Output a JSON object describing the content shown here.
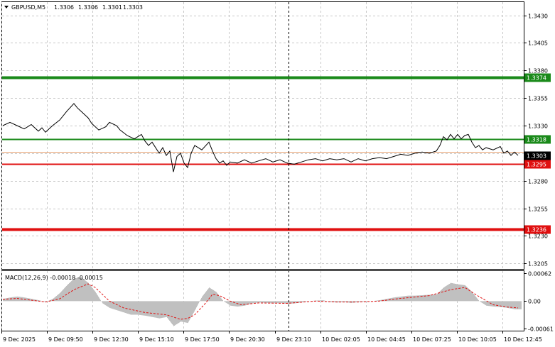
{
  "symbol_line": {
    "title": "GBPUSD,M5",
    "open": "1.3306",
    "high": "1.3306",
    "low": "1.3301",
    "close": "1.3303"
  },
  "price_axis": {
    "ticks": [
      "1.3430",
      "1.3405",
      "1.3380",
      "1.3355",
      "1.3330",
      "1.3305",
      "1.3280",
      "1.3255",
      "1.3230",
      "1.3205"
    ],
    "min": 1.32,
    "max": 1.3442
  },
  "levels": [
    {
      "label": "1.3374",
      "value": 1.3374,
      "color": "#1a8a1a",
      "bold": true
    },
    {
      "label": "1.3318",
      "value": 1.3318,
      "color": "#1a8a1a",
      "bold": false
    },
    {
      "label": "1.3295",
      "value": 1.3295,
      "color": "#e01010",
      "bold": false
    },
    {
      "label": "1.3236",
      "value": 1.3236,
      "color": "#e01010",
      "bold": true
    }
  ],
  "current_price": {
    "label": "1.3303",
    "value": 1.3303
  },
  "macd": {
    "title": "MACD(12,26,9) -0.00018 -0.00015",
    "ticks": [
      "0.00062",
      "0.00",
      "-0.00061"
    ],
    "min": -0.00065,
    "max": 0.00066
  },
  "time_axis": {
    "labels": [
      "9 Dec 2025",
      "9 Dec 09:50",
      "9 Dec 12:30",
      "9 Dec 15:10",
      "9 Dec 17:50",
      "9 Dec 20:30",
      "9 Dec 23:10",
      "10 Dec 02:05",
      "10 Dec 04:45",
      "10 Dec 07:25",
      "10 Dec 10:05",
      "10 Dec 12:45"
    ]
  },
  "chart_data": {
    "type": "line",
    "title": "GBPUSD,M5",
    "price_series": [
      [
        0,
        1.333
      ],
      [
        10,
        1.3333
      ],
      [
        20,
        1.333
      ],
      [
        30,
        1.3327
      ],
      [
        40,
        1.3331
      ],
      [
        50,
        1.3325
      ],
      [
        55,
        1.3328
      ],
      [
        60,
        1.3324
      ],
      [
        70,
        1.333
      ],
      [
        80,
        1.3335
      ],
      [
        90,
        1.3343
      ],
      [
        100,
        1.335
      ],
      [
        105,
        1.3346
      ],
      [
        110,
        1.3343
      ],
      [
        120,
        1.3337
      ],
      [
        125,
        1.3332
      ],
      [
        135,
        1.3326
      ],
      [
        145,
        1.3329
      ],
      [
        150,
        1.3333
      ],
      [
        160,
        1.333
      ],
      [
        165,
        1.3326
      ],
      [
        175,
        1.3321
      ],
      [
        185,
        1.3318
      ],
      [
        195,
        1.3322
      ],
      [
        200,
        1.3316
      ],
      [
        205,
        1.3312
      ],
      [
        210,
        1.3315
      ],
      [
        220,
        1.3305
      ],
      [
        225,
        1.331
      ],
      [
        230,
        1.3303
      ],
      [
        235,
        1.3307
      ],
      [
        240,
        1.3288
      ],
      [
        245,
        1.3302
      ],
      [
        250,
        1.3305
      ],
      [
        255,
        1.3296
      ],
      [
        260,
        1.3292
      ],
      [
        265,
        1.3305
      ],
      [
        270,
        1.3312
      ],
      [
        280,
        1.3308
      ],
      [
        290,
        1.3315
      ],
      [
        295,
        1.3307
      ],
      [
        300,
        1.33
      ],
      [
        305,
        1.3296
      ],
      [
        310,
        1.3298
      ],
      [
        315,
        1.3294
      ],
      [
        320,
        1.3297
      ],
      [
        330,
        1.3296
      ],
      [
        340,
        1.3299
      ],
      [
        350,
        1.3296
      ],
      [
        360,
        1.3298
      ],
      [
        370,
        1.33
      ],
      [
        380,
        1.3297
      ],
      [
        390,
        1.3299
      ],
      [
        400,
        1.3296
      ],
      [
        410,
        1.3295
      ],
      [
        420,
        1.3297
      ],
      [
        430,
        1.3299
      ],
      [
        440,
        1.33
      ],
      [
        450,
        1.3298
      ],
      [
        460,
        1.33
      ],
      [
        470,
        1.3299
      ],
      [
        480,
        1.33
      ],
      [
        490,
        1.3297
      ],
      [
        500,
        1.33
      ],
      [
        510,
        1.3298
      ],
      [
        520,
        1.33
      ],
      [
        530,
        1.3301
      ],
      [
        540,
        1.33
      ],
      [
        550,
        1.3302
      ],
      [
        560,
        1.3304
      ],
      [
        570,
        1.3303
      ],
      [
        580,
        1.3305
      ],
      [
        590,
        1.3306
      ],
      [
        600,
        1.3305
      ],
      [
        610,
        1.3307
      ],
      [
        615,
        1.3312
      ],
      [
        620,
        1.332
      ],
      [
        625,
        1.3317
      ],
      [
        630,
        1.3322
      ],
      [
        635,
        1.3318
      ],
      [
        640,
        1.3322
      ],
      [
        645,
        1.3318
      ],
      [
        650,
        1.3321
      ],
      [
        655,
        1.3322
      ],
      [
        660,
        1.3315
      ],
      [
        665,
        1.331
      ],
      [
        670,
        1.3312
      ],
      [
        675,
        1.3308
      ],
      [
        680,
        1.331
      ],
      [
        690,
        1.3308
      ],
      [
        700,
        1.3311
      ],
      [
        705,
        1.3305
      ],
      [
        710,
        1.3307
      ],
      [
        715,
        1.3303
      ],
      [
        720,
        1.3306
      ],
      [
        725,
        1.3303
      ]
    ],
    "macd_histogram": [
      [
        0,
        5e-05
      ],
      [
        10,
        8e-05
      ],
      [
        20,
        0.0001
      ],
      [
        30,
        8e-05
      ],
      [
        40,
        5e-05
      ],
      [
        50,
        2e-05
      ],
      [
        60,
        -2e-05
      ],
      [
        70,
        5e-05
      ],
      [
        80,
        0.00018
      ],
      [
        90,
        0.00035
      ],
      [
        100,
        0.0005
      ],
      [
        110,
        0.00052
      ],
      [
        120,
        0.0004
      ],
      [
        130,
        0.0002
      ],
      [
        140,
        -5e-05
      ],
      [
        150,
        -0.00015
      ],
      [
        160,
        -0.0002
      ],
      [
        170,
        -0.00025
      ],
      [
        180,
        -0.0003
      ],
      [
        190,
        -0.0003
      ],
      [
        200,
        -0.00032
      ],
      [
        210,
        -0.00035
      ],
      [
        220,
        -0.00038
      ],
      [
        230,
        -0.00035
      ],
      [
        240,
        -0.00055
      ],
      [
        250,
        -0.00045
      ],
      [
        260,
        -0.00048
      ],
      [
        270,
        -0.0002
      ],
      [
        280,
        0.0001
      ],
      [
        290,
        0.0003
      ],
      [
        300,
        0.0002
      ],
      [
        310,
        0.0
      ],
      [
        320,
        -0.0001
      ],
      [
        330,
        -0.00012
      ],
      [
        340,
        -0.0001
      ],
      [
        350,
        -5e-05
      ],
      [
        360,
        -3e-05
      ],
      [
        370,
        -4e-05
      ],
      [
        380,
        -5e-05
      ],
      [
        390,
        -4e-05
      ],
      [
        400,
        -6e-05
      ],
      [
        410,
        -5e-05
      ],
      [
        420,
        -3e-05
      ],
      [
        430,
        0.0
      ],
      [
        440,
        1e-05
      ],
      [
        450,
        2e-05
      ],
      [
        460,
        -2e-05
      ],
      [
        470,
        -3e-05
      ],
      [
        480,
        -2e-05
      ],
      [
        490,
        -4e-05
      ],
      [
        500,
        -2e-05
      ],
      [
        510,
        -1e-05
      ],
      [
        520,
        0.0
      ],
      [
        530,
        2e-05
      ],
      [
        540,
        5e-05
      ],
      [
        550,
        8e-05
      ],
      [
        560,
        0.0001
      ],
      [
        570,
        0.00012
      ],
      [
        580,
        0.00012
      ],
      [
        590,
        0.00013
      ],
      [
        600,
        0.00014
      ],
      [
        610,
        0.00015
      ],
      [
        620,
        0.0003
      ],
      [
        630,
        0.0004
      ],
      [
        640,
        0.00037
      ],
      [
        650,
        0.00035
      ],
      [
        660,
        0.0002
      ],
      [
        670,
        0.0
      ],
      [
        680,
        -0.0001
      ],
      [
        690,
        -0.00012
      ],
      [
        700,
        -0.00013
      ],
      [
        710,
        -0.00015
      ],
      [
        720,
        -0.00018
      ],
      [
        725,
        -0.00018
      ]
    ],
    "macd_signal": [
      [
        0,
        4e-05
      ],
      [
        20,
        6e-05
      ],
      [
        40,
        2e-05
      ],
      [
        60,
        -2e-05
      ],
      [
        80,
        5e-05
      ],
      [
        100,
        0.00025
      ],
      [
        120,
        0.00038
      ],
      [
        130,
        0.0003
      ],
      [
        140,
        0.00015
      ],
      [
        150,
        0.0
      ],
      [
        170,
        -0.00015
      ],
      [
        200,
        -0.00025
      ],
      [
        230,
        -0.0003
      ],
      [
        250,
        -0.0004
      ],
      [
        260,
        -0.00038
      ],
      [
        270,
        -0.0003
      ],
      [
        285,
        -5e-05
      ],
      [
        295,
        0.00015
      ],
      [
        305,
        0.00012
      ],
      [
        320,
        0.0
      ],
      [
        335,
        -8e-05
      ],
      [
        360,
        -4e-05
      ],
      [
        400,
        -5e-05
      ],
      [
        440,
        0.0
      ],
      [
        470,
        -2e-05
      ],
      [
        500,
        -2e-05
      ],
      [
        530,
        0.0
      ],
      [
        560,
        6e-05
      ],
      [
        600,
        0.00012
      ],
      [
        630,
        0.00025
      ],
      [
        650,
        0.0003
      ],
      [
        670,
        0.0001
      ],
      [
        690,
        -8e-05
      ],
      [
        710,
        -0.00013
      ],
      [
        725,
        -0.00015
      ]
    ]
  }
}
